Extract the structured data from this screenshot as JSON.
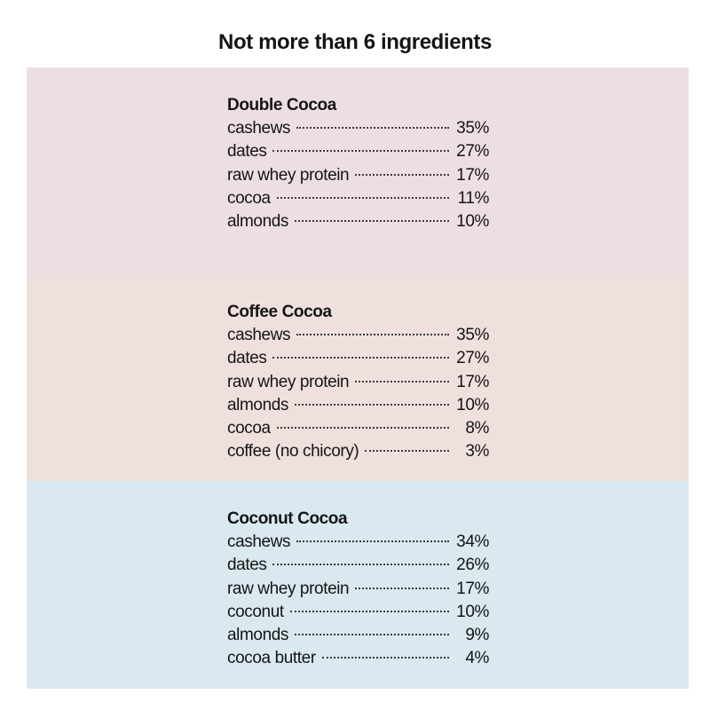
{
  "title": "Not more than 6 ingredients",
  "recipes": [
    {
      "name": "Double Cocoa",
      "panel_color": "#eddfe1",
      "ingredients": [
        {
          "name": "cashews",
          "pct": "35%"
        },
        {
          "name": "dates",
          "pct": "27%"
        },
        {
          "name": "raw whey protein",
          "pct": "17%"
        },
        {
          "name": "cocoa",
          "pct": "11%"
        },
        {
          "name": "almonds",
          "pct": "10%"
        }
      ]
    },
    {
      "name": "Coffee Cocoa",
      "panel_color": "#efe0de",
      "ingredients": [
        {
          "name": "cashews",
          "pct": "35%"
        },
        {
          "name": "dates",
          "pct": "27%"
        },
        {
          "name": "raw whey protein",
          "pct": "17%"
        },
        {
          "name": "almonds",
          "pct": "10%"
        },
        {
          "name": "cocoa",
          "pct": "8%"
        },
        {
          "name": "coffee (no chicory)",
          "pct": "3%"
        }
      ]
    },
    {
      "name": "Coconut Cocoa",
      "panel_color": "#d9e9ef",
      "ingredients": [
        {
          "name": "cashews",
          "pct": "34%"
        },
        {
          "name": "dates",
          "pct": "26%"
        },
        {
          "name": "raw whey protein",
          "pct": "17%"
        },
        {
          "name": "coconut",
          "pct": "10%"
        },
        {
          "name": "almonds",
          "pct": "9%"
        },
        {
          "name": "cocoa butter",
          "pct": "4%"
        }
      ]
    }
  ]
}
